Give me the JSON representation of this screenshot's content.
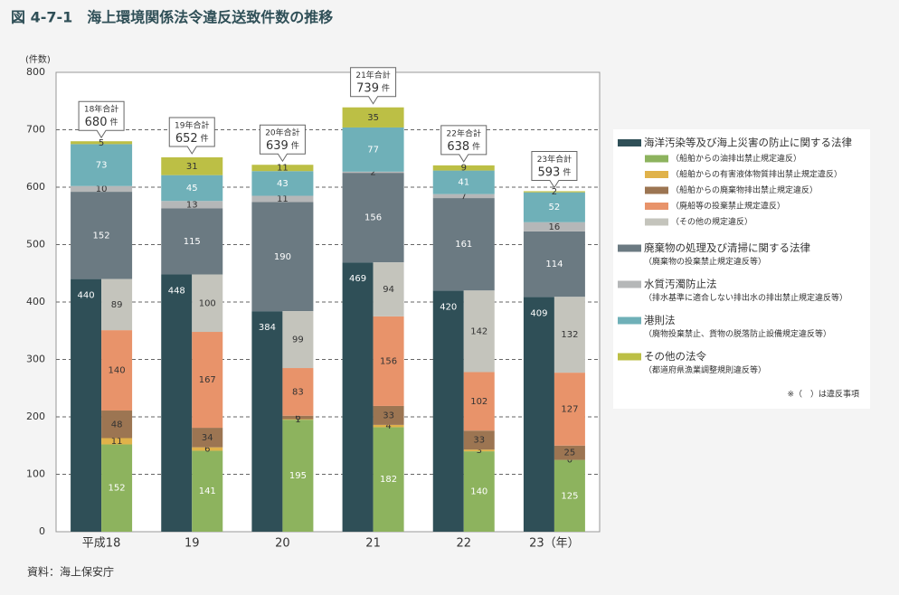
{
  "chart_data": {
    "type": "stacked_bar",
    "title": "図 4-7-1　海上環境関係法令違反送致件数の推移",
    "y_unit_label": "(件数)",
    "categories": [
      "平成18",
      "19",
      "20",
      "21",
      "22",
      "23（年）"
    ],
    "ylim": [
      0,
      800
    ],
    "yticks": [
      0,
      100,
      200,
      300,
      400,
      500,
      600,
      700,
      800
    ],
    "grid": true,
    "series": [
      {
        "name": "海洋汚染等及び海上災害の防止に関する法律",
        "color": "#2f4f57",
        "values": [
          440,
          448,
          384,
          469,
          420,
          409
        ]
      },
      {
        "name": "廃棄物の処理及び清掃に関する法律",
        "note": "（廃棄物の投棄禁止規定違反等）",
        "color": "#6b7a82",
        "values": [
          152,
          115,
          190,
          156,
          161,
          114
        ]
      },
      {
        "name": "水質汚濁防止法",
        "note": "（排水基準に適合しない排出水の排出禁止規定違反等）",
        "color": "#b5b7b8",
        "values": [
          10,
          13,
          11,
          2,
          7,
          16
        ]
      },
      {
        "name": "港則法",
        "note": "（廃物投棄禁止、貨物の脱落防止設備規定違反等）",
        "color": "#6fb0b8",
        "values": [
          73,
          45,
          43,
          77,
          41,
          52
        ]
      },
      {
        "name": "その他の法令",
        "note": "（都道府県漁業調整規則違反等）",
        "color": "#bcbf45",
        "values": [
          5,
          31,
          11,
          35,
          9,
          2
        ]
      }
    ],
    "breakdown": [
      {
        "name": "（船舶からの油排出禁止規定違反）",
        "color": "#8db35e",
        "values": [
          152,
          141,
          195,
          182,
          140,
          125
        ]
      },
      {
        "name": "（船舶からの有害液体物質排出禁止規定違反）",
        "color": "#e0b24a",
        "values": [
          11,
          6,
          1,
          4,
          3,
          0
        ]
      },
      {
        "name": "（船舶からの廃棄物排出禁止規定違反）",
        "color": "#9c7552",
        "values": [
          48,
          34,
          6,
          33,
          33,
          25
        ]
      },
      {
        "name": "（廃船等の投棄禁止規定違反）",
        "color": "#e8936a",
        "values": [
          140,
          167,
          83,
          156,
          102,
          127
        ]
      },
      {
        "name": "（その他の規定違反）",
        "color": "#c4c4bc",
        "values": [
          89,
          100,
          99,
          94,
          142,
          132
        ]
      }
    ],
    "totals": {
      "labels": [
        "18年合計",
        "19年合計",
        "20年合計",
        "21年合計",
        "22年合計",
        "23年合計"
      ],
      "values": [
        680,
        652,
        639,
        739,
        638,
        593
      ],
      "unit": "件"
    },
    "footnote": "※（　）は違反事項",
    "source": "資料：海上保安庁"
  }
}
